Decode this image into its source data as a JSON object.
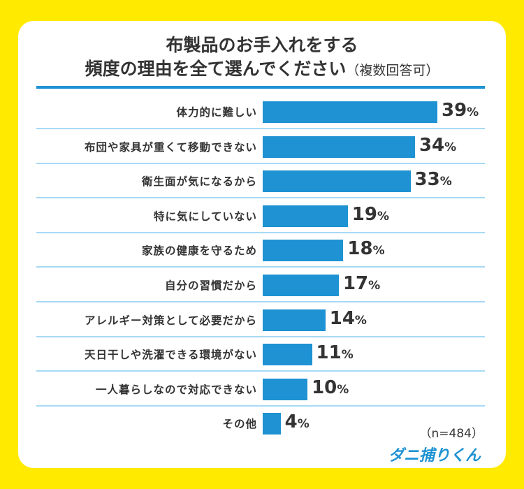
{
  "chart_data": {
    "type": "bar",
    "orientation": "horizontal",
    "title_line1": "布製品のお手入れをする",
    "title_line2": "頻度の理由を全て選んでください",
    "title_note": "（複数回答可）",
    "unit": "%",
    "categories": [
      "体力的に難しい",
      "布団や家具が重くて移動できない",
      "衛生面が気になるから",
      "特に気にしていない",
      "家族の健康を守るため",
      "自分の習慣だから",
      "アレルギー対策として必要だから",
      "天日干しや洗濯できる環境がない",
      "一人暮らしなので対応できない",
      "その他"
    ],
    "values": [
      39,
      34,
      33,
      19,
      18,
      17,
      14,
      11,
      10,
      4
    ],
    "bar_color": "#1E92D3",
    "sample": "（n=484）"
  },
  "logo": "ダニ捕りくん",
  "colors": {
    "background": "#FFEA00",
    "bar": "#1E92D3",
    "separator": "#A7D9F5"
  }
}
